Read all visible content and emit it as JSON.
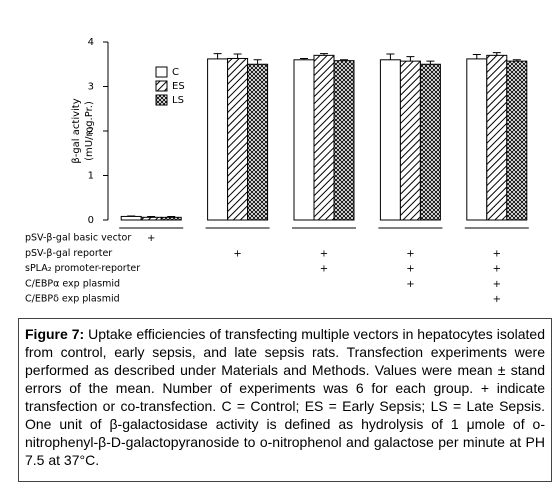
{
  "chart_data": {
    "type": "bar",
    "ylabel": [
      "β-gal activity",
      "(mU/mg.Pr.)"
    ],
    "categories": [
      null,
      null,
      null,
      null,
      null
    ],
    "series": [
      {
        "name": "C",
        "color": "#ffffff",
        "pattern": "none",
        "values": [
          0.08,
          3.62,
          3.6,
          3.6,
          3.62
        ],
        "errors": [
          0.01,
          0.12,
          0.03,
          0.13,
          0.1
        ]
      },
      {
        "name": "ES",
        "color": "#ffffff",
        "pattern": "diagonal",
        "values": [
          0.06,
          3.63,
          3.7,
          3.57,
          3.7
        ],
        "errors": [
          0.02,
          0.1,
          0.04,
          0.1,
          0.06
        ]
      },
      {
        "name": "LS",
        "color": "#ffffff",
        "pattern": "crosshatch",
        "values": [
          0.06,
          3.5,
          3.58,
          3.5,
          3.57
        ],
        "errors": [
          0.02,
          0.1,
          0.02,
          0.07,
          0.03
        ]
      }
    ],
    "ylim": [
      0,
      4
    ],
    "yticks": [
      0,
      1,
      2,
      3,
      4
    ],
    "grid": false,
    "legend": "upper-left",
    "conditions": [
      {
        "label": "pSV-β-gal basic vector",
        "marks": [
          "+",
          null,
          null,
          null,
          null
        ]
      },
      {
        "label": "pSV-β-gal reporter",
        "marks": [
          null,
          "+",
          "+",
          "+",
          "+"
        ]
      },
      {
        "label": "sPLA₂ promoter-reporter",
        "marks": [
          null,
          null,
          "+",
          "+",
          "+"
        ]
      },
      {
        "label": "C/EBPα exp plasmid",
        "marks": [
          null,
          null,
          null,
          "+",
          "+"
        ]
      },
      {
        "label": "C/EBPδ exp plasmid",
        "marks": [
          null,
          null,
          null,
          null,
          "+"
        ]
      }
    ]
  },
  "caption": {
    "label": "Figure 7:",
    "text": " Uptake efficiencies of transfecting multiple vectors in hepatocytes isolated from control, early sepsis, and late sepsis rats. Transfection experiments were performed as described under Materials and Methods. Values were mean ± stand errors of the mean. Number of experiments was 6 for each group. + indicate transfection or co-transfection. C = Control; ES = Early Sepsis; LS = Late Sepsis. One unit of β-galactosidase activity is defined as hydrolysis of 1 μmole of o-nitrophenyl-β-D-galactopyranoside to o-nitrophenol and galactose per minute at PH 7.5 at 37°C."
  }
}
